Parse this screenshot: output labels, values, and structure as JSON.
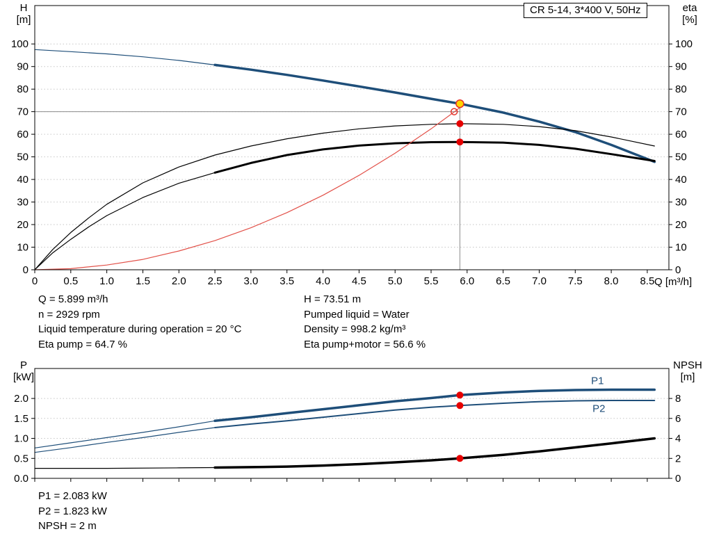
{
  "title_box": {
    "label": "CR 5-14, 3*400 V, 50Hz"
  },
  "axis_corner_labels": {
    "top_left_line1": "H",
    "top_left_line2": "[m]",
    "top_right_line1": "eta",
    "top_right_line2": "[%]",
    "bottom_left_line1": "P",
    "bottom_left_line2": "[kW]",
    "bottom_right_line1": "NPSH",
    "bottom_right_line2": "[m]",
    "x_axis": "Q [m³/h]"
  },
  "operating_point_info": {
    "left": [
      "Q = 5.899 m³/h",
      "n = 2929 rpm",
      "Liquid temperature during operation = 20 °C",
      "Eta pump = 64.7 %"
    ],
    "right": [
      "H = 73.51 m",
      "Pumped liquid = Water",
      "Density = 998.2 kg/m³",
      "Eta pump+motor = 56.6 %"
    ]
  },
  "power_info": [
    "P1 = 2.083 kW",
    "P2 = 1.823 kW",
    "NPSH = 2 m"
  ],
  "colors": {
    "curve_blue": "#1e4e79",
    "curve_black": "#000000",
    "curve_red": "#e25048",
    "marker_red": "#e60000",
    "marker_yellow": "#ffd400",
    "marker_ring_red": "#e53228",
    "guide_gray": "#8c8c8c",
    "grid": "#c6c6c6",
    "frame": "#000000"
  },
  "chart_data": [
    {
      "type": "line",
      "title": "CR 5-14, 3*400 V, 50Hz",
      "x_axis": {
        "label": "Q [m³/h]",
        "min": 0,
        "max": 8.8,
        "tick_values": [
          0,
          0.5,
          1,
          1.5,
          2,
          2.5,
          3,
          3.5,
          4,
          4.5,
          5,
          5.5,
          6,
          6.5,
          7,
          7.5,
          8,
          8.5
        ],
        "tick_labels": [
          "0",
          "0.5",
          "1.0",
          "1.5",
          "2.0",
          "2.5",
          "3.0",
          "3.5",
          "4.0",
          "4.5",
          "5.0",
          "5.5",
          "6.0",
          "6.5",
          "7.0",
          "7.5",
          "8.0",
          "8.5"
        ],
        "show_tick_labels": true
      },
      "y_left": {
        "label": "H [m]",
        "min": 0,
        "max": 117,
        "tick_values": [
          0,
          10,
          20,
          30,
          40,
          50,
          60,
          70,
          80,
          90,
          100
        ],
        "tick_labels": [
          "0",
          "10",
          "20",
          "30",
          "40",
          "50",
          "60",
          "70",
          "80",
          "90",
          "100"
        ],
        "grid": [
          10,
          20,
          30,
          40,
          50,
          60,
          70,
          80,
          90,
          100
        ]
      },
      "y_right": {
        "label": "eta [%]",
        "min": 0,
        "max": 117,
        "tick_values": [
          0,
          10,
          20,
          30,
          40,
          50,
          60,
          70,
          80,
          90,
          100
        ],
        "tick_labels": [
          "0",
          "10",
          "20",
          "30",
          "40",
          "50",
          "60",
          "70",
          "80",
          "90",
          "100"
        ]
      },
      "duty_point": {
        "Q": 5.899,
        "H": 73.51,
        "eta_pump": 64.7,
        "eta_pump_motor": 56.6
      },
      "guide_lines": [
        {
          "orient": "v",
          "at": 5.899,
          "from": 0,
          "to": 73.51
        },
        {
          "orient": "h",
          "at": 70.0,
          "from": 0,
          "to": 5.899
        }
      ],
      "series": [
        {
          "name": "head-curve-thin",
          "label": "H (QH curve, low-flow extension)",
          "color": "#1e4e79",
          "width": 1.2,
          "axis": "left",
          "points": [
            [
              0,
              97.5
            ],
            [
              0.5,
              96.6
            ],
            [
              1,
              95.6
            ],
            [
              1.5,
              94.3
            ],
            [
              2,
              92.7
            ],
            [
              2.5,
              90.7
            ]
          ]
        },
        {
          "name": "head-curve",
          "label": "H (QH curve)",
          "color": "#1e4e79",
          "width": 3.5,
          "axis": "left",
          "points": [
            [
              2.5,
              90.7
            ],
            [
              3,
              88.6
            ],
            [
              3.5,
              86.3
            ],
            [
              4,
              83.8
            ],
            [
              4.5,
              81.2
            ],
            [
              5,
              78.5
            ],
            [
              5.5,
              75.7
            ],
            [
              5.899,
              73.51
            ],
            [
              6.5,
              69.6
            ],
            [
              7,
              65.6
            ],
            [
              7.5,
              61.0
            ],
            [
              8,
              55.3
            ],
            [
              8.6,
              47.8
            ]
          ]
        },
        {
          "name": "eta-pump",
          "label": "Eta pump",
          "color": "#000000",
          "width": 1.2,
          "axis": "right",
          "points": [
            [
              0,
              0
            ],
            [
              0.25,
              9
            ],
            [
              0.5,
              16.5
            ],
            [
              0.75,
              23
            ],
            [
              1,
              29
            ],
            [
              1.5,
              38.5
            ],
            [
              2,
              45.5
            ],
            [
              2.5,
              50.8
            ],
            [
              3,
              54.8
            ],
            [
              3.5,
              58
            ],
            [
              4,
              60.5
            ],
            [
              4.5,
              62.4
            ],
            [
              5,
              63.7
            ],
            [
              5.5,
              64.4
            ],
            [
              5.899,
              64.7
            ],
            [
              6.5,
              64.4
            ],
            [
              7,
              63.4
            ],
            [
              7.5,
              61.6
            ],
            [
              8,
              58.8
            ],
            [
              8.6,
              54.8
            ]
          ]
        },
        {
          "name": "eta-pump-motor-thin",
          "label": "Eta pump+motor (low-flow extension)",
          "color": "#000000",
          "width": 1.2,
          "axis": "right",
          "points": [
            [
              0,
              0
            ],
            [
              0.25,
              7.5
            ],
            [
              0.5,
              13.5
            ],
            [
              0.75,
              19
            ],
            [
              1,
              24
            ],
            [
              1.5,
              32
            ],
            [
              2,
              38.3
            ],
            [
              2.5,
              43
            ]
          ]
        },
        {
          "name": "eta-pump-motor",
          "label": "Eta pump+motor",
          "color": "#000000",
          "width": 3,
          "axis": "right",
          "points": [
            [
              2.5,
              43
            ],
            [
              3,
              47.3
            ],
            [
              3.5,
              50.8
            ],
            [
              4,
              53.3
            ],
            [
              4.5,
              55.0
            ],
            [
              5,
              56.0
            ],
            [
              5.5,
              56.5
            ],
            [
              5.899,
              56.6
            ],
            [
              6.5,
              56.3
            ],
            [
              7,
              55.3
            ],
            [
              7.5,
              53.6
            ],
            [
              8,
              51.2
            ],
            [
              8.6,
              48.2
            ]
          ]
        },
        {
          "name": "system-curve",
          "label": "System curve",
          "color": "#e25048",
          "width": 1.2,
          "axis": "left",
          "points": [
            [
              0,
              0
            ],
            [
              0.5,
              0.5
            ],
            [
              1,
              2.1
            ],
            [
              1.5,
              4.6
            ],
            [
              2,
              8.3
            ],
            [
              2.5,
              12.9
            ],
            [
              3,
              18.6
            ],
            [
              3.5,
              25.3
            ],
            [
              4,
              33.0
            ],
            [
              4.5,
              41.8
            ],
            [
              5,
              51.6
            ],
            [
              5.5,
              62.4
            ],
            [
              5.82,
              69.9
            ],
            [
              5.95,
              73.1
            ]
          ]
        }
      ],
      "markers": [
        {
          "name": "rated-point-marker",
          "x": 5.82,
          "y": 70.0,
          "axis": "left",
          "r": 4.5,
          "fill": "none",
          "stroke": "#e53228",
          "stroke_width": 1.5
        },
        {
          "name": "duty-point-marker",
          "x": 5.899,
          "y": 73.51,
          "axis": "left",
          "r": 5.5,
          "fill": "#ffd400",
          "stroke": "#e53228",
          "stroke_width": 1.5
        },
        {
          "name": "eta-pump-marker",
          "x": 5.899,
          "y": 64.7,
          "axis": "right",
          "r": 5,
          "fill": "#e60000"
        },
        {
          "name": "eta-pump-motor-marker",
          "x": 5.899,
          "y": 56.6,
          "axis": "right",
          "r": 5,
          "fill": "#e60000"
        }
      ]
    },
    {
      "type": "line",
      "title": "Power and NPSH curves",
      "x_axis": {
        "label": "Q [m³/h]",
        "min": 0,
        "max": 8.8,
        "tick_values": [
          0,
          0.5,
          1,
          1.5,
          2,
          2.5,
          3,
          3.5,
          4,
          4.5,
          5,
          5.5,
          6,
          6.5,
          7,
          7.5,
          8,
          8.5
        ],
        "tick_labels": [
          "0",
          "0.5",
          "1.0",
          "1.5",
          "2.0",
          "2.5",
          "3.0",
          "3.5",
          "4.0",
          "4.5",
          "5.0",
          "5.5",
          "6.0",
          "6.5",
          "7.0",
          "7.5",
          "8.0",
          "8.5"
        ],
        "show_tick_labels": false
      },
      "y_left": {
        "label": "P [kW]",
        "min": 0,
        "max": 2.75,
        "tick_values": [
          0,
          0.5,
          1,
          1.5,
          2
        ],
        "tick_labels": [
          "0.0",
          "0.5",
          "1.0",
          "1.5",
          "2.0"
        ],
        "grid": [
          0.5,
          1,
          1.5,
          2
        ]
      },
      "y_right": {
        "label": "NPSH [m]",
        "min": 0,
        "max": 11,
        "tick_values": [
          0,
          2,
          4,
          6,
          8
        ],
        "tick_labels": [
          "0",
          "2",
          "4",
          "6",
          "8"
        ]
      },
      "duty_point": {
        "Q": 5.899,
        "P1_kW": 2.083,
        "P2_kW": 1.823,
        "NPSH_m": 2
      },
      "guide_lines": [],
      "series": [
        {
          "name": "p1-curve-thin",
          "label": "P1 (low-flow extension)",
          "color": "#1e4e79",
          "width": 1.2,
          "axis": "left",
          "points": [
            [
              0,
              0.76
            ],
            [
              0.5,
              0.89
            ],
            [
              1,
              1.02
            ],
            [
              1.5,
              1.15
            ],
            [
              2,
              1.29
            ],
            [
              2.5,
              1.44
            ]
          ]
        },
        {
          "name": "p1-curve",
          "label": "P1",
          "color": "#1e4e79",
          "width": 3.5,
          "axis": "left",
          "points": [
            [
              2.5,
              1.44
            ],
            [
              3,
              1.53
            ],
            [
              3.5,
              1.63
            ],
            [
              4,
              1.73
            ],
            [
              4.5,
              1.83
            ],
            [
              5,
              1.93
            ],
            [
              5.5,
              2.01
            ],
            [
              5.899,
              2.083
            ],
            [
              6.5,
              2.15
            ],
            [
              7,
              2.19
            ],
            [
              7.5,
              2.21
            ],
            [
              8,
              2.22
            ],
            [
              8.6,
              2.22
            ]
          ]
        },
        {
          "name": "p2-curve-thin",
          "label": "P2 (low-flow extension)",
          "color": "#1e4e79",
          "width": 1.2,
          "axis": "left",
          "points": [
            [
              0,
              0.65
            ],
            [
              0.5,
              0.77
            ],
            [
              1,
              0.9
            ],
            [
              1.5,
              1.02
            ],
            [
              2,
              1.15
            ],
            [
              2.5,
              1.27
            ]
          ]
        },
        {
          "name": "p2-curve",
          "label": "P2",
          "color": "#1e4e79",
          "width": 2,
          "axis": "left",
          "points": [
            [
              2.5,
              1.27
            ],
            [
              3,
              1.36
            ],
            [
              3.5,
              1.44
            ],
            [
              4,
              1.53
            ],
            [
              4.5,
              1.62
            ],
            [
              5,
              1.71
            ],
            [
              5.5,
              1.78
            ],
            [
              5.899,
              1.823
            ],
            [
              6.5,
              1.88
            ],
            [
              7,
              1.92
            ],
            [
              7.5,
              1.94
            ],
            [
              8,
              1.95
            ],
            [
              8.6,
              1.95
            ]
          ]
        },
        {
          "name": "npsh-curve-thin",
          "label": "NPSH (low-flow extension)",
          "color": "#000000",
          "width": 1.2,
          "axis": "right",
          "points": [
            [
              0,
              1.0
            ],
            [
              1,
              1.0
            ],
            [
              2,
              1.05
            ],
            [
              2.5,
              1.08
            ]
          ]
        },
        {
          "name": "npsh-curve",
          "label": "NPSH",
          "color": "#000000",
          "width": 3.5,
          "axis": "right",
          "points": [
            [
              2.5,
              1.08
            ],
            [
              3,
              1.12
            ],
            [
              3.5,
              1.18
            ],
            [
              4,
              1.28
            ],
            [
              4.5,
              1.42
            ],
            [
              5,
              1.6
            ],
            [
              5.5,
              1.8
            ],
            [
              5.899,
              2.0
            ],
            [
              6.5,
              2.35
            ],
            [
              7,
              2.7
            ],
            [
              7.5,
              3.1
            ],
            [
              8,
              3.5
            ],
            [
              8.6,
              4.0
            ]
          ]
        }
      ],
      "markers": [
        {
          "name": "p1-marker",
          "x": 5.899,
          "y": 2.083,
          "axis": "left",
          "r": 5,
          "fill": "#e60000"
        },
        {
          "name": "p2-marker",
          "x": 5.899,
          "y": 1.823,
          "axis": "left",
          "r": 5,
          "fill": "#e60000"
        },
        {
          "name": "npsh-marker",
          "x": 5.899,
          "y": 2.0,
          "axis": "right",
          "r": 5,
          "fill": "#e60000"
        }
      ],
      "annotations": [
        {
          "text": "P1",
          "x": 7.72,
          "y": 2.36,
          "axis": "left",
          "color": "#1e4e79"
        },
        {
          "text": "P2",
          "x": 7.74,
          "y": 1.66,
          "axis": "left",
          "color": "#1e4e79"
        }
      ]
    }
  ]
}
